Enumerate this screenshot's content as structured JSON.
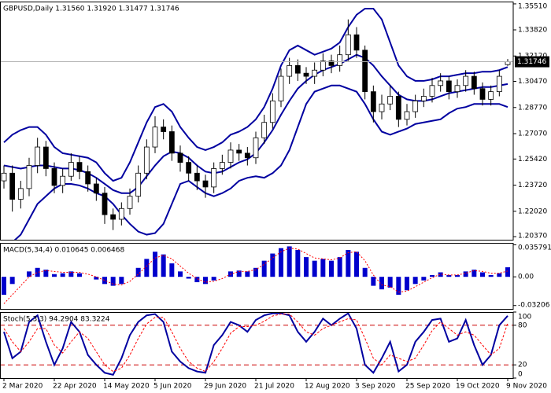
{
  "chart_data": [
    {
      "type": "candlestick",
      "title": "GBPUSD,Daily  1.31560 1.31920 1.31477 1.31746",
      "categories": [
        "2 Mar 2020",
        null,
        null,
        null,
        null,
        null,
        "22 Apr 2020",
        null,
        null,
        null,
        null,
        null,
        "14 May 2020",
        null,
        null,
        null,
        null,
        null,
        "5 Jun 2020",
        null,
        null,
        null,
        null,
        null,
        "29 Jun 2020",
        null,
        null,
        null,
        null,
        null,
        "21 Jul 2020",
        null,
        null,
        null,
        null,
        null,
        "12 Aug 2020",
        null,
        null,
        null,
        null,
        null,
        "3 Sep 2020",
        null,
        null,
        null,
        null,
        null,
        "25 Sep 2020",
        null,
        null,
        null,
        null,
        null,
        "19 Oct 2020",
        null,
        null,
        null,
        null,
        null,
        "9 Nov 2020"
      ],
      "open": [
        1.24,
        1.245,
        1.228,
        1.235,
        1.25,
        1.262,
        1.248,
        1.237,
        1.243,
        1.252,
        1.246,
        1.238,
        1.232,
        1.218,
        1.215,
        1.222,
        1.23,
        1.245,
        1.262,
        1.275,
        1.272,
        1.258,
        1.252,
        1.245,
        1.24,
        1.236,
        1.248,
        1.252,
        1.26,
        1.258,
        1.255,
        1.268,
        1.278,
        1.292,
        1.308,
        1.315,
        1.31,
        1.308,
        1.312,
        1.318,
        1.315,
        1.322,
        1.335,
        1.325,
        1.298,
        1.285,
        1.29,
        1.295,
        1.28,
        1.285,
        1.292,
        1.295,
        1.302,
        1.305,
        1.298,
        1.302,
        1.308,
        1.3,
        1.293,
        1.298,
        1.3156
      ],
      "high": [
        1.25,
        1.25,
        1.24,
        1.255,
        1.268,
        1.266,
        1.252,
        1.248,
        1.258,
        1.256,
        1.25,
        1.242,
        1.236,
        1.222,
        1.226,
        1.235,
        1.25,
        1.267,
        1.282,
        1.28,
        1.276,
        1.263,
        1.256,
        1.25,
        1.244,
        1.252,
        1.257,
        1.265,
        1.264,
        1.262,
        1.272,
        1.283,
        1.297,
        1.313,
        1.32,
        1.319,
        1.314,
        1.317,
        1.323,
        1.322,
        1.328,
        1.345,
        1.34,
        1.328,
        1.302,
        1.296,
        1.302,
        1.298,
        1.29,
        1.296,
        1.3,
        1.307,
        1.31,
        1.308,
        1.306,
        1.312,
        1.311,
        1.304,
        1.302,
        1.312,
        1.3192
      ],
      "low": [
        1.235,
        1.22,
        1.222,
        1.23,
        1.245,
        1.243,
        1.232,
        1.232,
        1.24,
        1.241,
        1.233,
        1.227,
        1.212,
        1.208,
        1.211,
        1.218,
        1.226,
        1.241,
        1.258,
        1.267,
        1.253,
        1.246,
        1.24,
        1.234,
        1.229,
        1.232,
        1.244,
        1.248,
        1.253,
        1.25,
        1.251,
        1.264,
        1.274,
        1.288,
        1.303,
        1.305,
        1.303,
        1.303,
        1.308,
        1.31,
        1.311,
        1.318,
        1.32,
        1.293,
        1.278,
        1.28,
        1.286,
        1.275,
        1.276,
        1.281,
        1.288,
        1.291,
        1.298,
        1.293,
        1.294,
        1.298,
        1.296,
        1.289,
        1.289,
        1.295,
        1.31477
      ],
      "close": [
        1.245,
        1.228,
        1.235,
        1.25,
        1.262,
        1.248,
        1.237,
        1.243,
        1.252,
        1.246,
        1.238,
        1.232,
        1.218,
        1.215,
        1.222,
        1.23,
        1.245,
        1.262,
        1.275,
        1.272,
        1.258,
        1.252,
        1.245,
        1.24,
        1.236,
        1.248,
        1.252,
        1.26,
        1.258,
        1.255,
        1.268,
        1.278,
        1.292,
        1.308,
        1.315,
        1.31,
        1.308,
        1.312,
        1.318,
        1.315,
        1.322,
        1.335,
        1.325,
        1.298,
        1.285,
        1.29,
        1.295,
        1.28,
        1.285,
        1.292,
        1.295,
        1.302,
        1.305,
        1.298,
        1.302,
        1.308,
        1.3,
        1.293,
        1.298,
        1.308,
        1.31746
      ],
      "color": "#000000",
      "bands": {
        "color": "#0000a0",
        "upper": [
          1.265,
          1.27,
          1.273,
          1.275,
          1.275,
          1.27,
          1.262,
          1.258,
          1.257,
          1.256,
          1.255,
          1.252,
          1.245,
          1.24,
          1.242,
          1.252,
          1.265,
          1.278,
          1.288,
          1.29,
          1.285,
          1.275,
          1.268,
          1.262,
          1.26,
          1.262,
          1.265,
          1.27,
          1.272,
          1.275,
          1.28,
          1.288,
          1.3,
          1.315,
          1.325,
          1.328,
          1.325,
          1.322,
          1.324,
          1.326,
          1.33,
          1.34,
          1.348,
          1.352,
          1.352,
          1.345,
          1.33,
          1.315,
          1.308,
          1.305,
          1.305,
          1.306,
          1.308,
          1.308,
          1.309,
          1.31,
          1.31,
          1.311,
          1.311,
          1.312,
          1.314
        ],
        "middle": [
          1.25,
          1.249,
          1.248,
          1.249,
          1.25,
          1.25,
          1.249,
          1.248,
          1.248,
          1.247,
          1.245,
          1.242,
          1.238,
          1.234,
          1.232,
          1.232,
          1.236,
          1.243,
          1.25,
          1.256,
          1.259,
          1.258,
          1.255,
          1.25,
          1.246,
          1.245,
          1.246,
          1.249,
          1.252,
          1.254,
          1.258,
          1.265,
          1.273,
          1.283,
          1.292,
          1.3,
          1.305,
          1.309,
          1.312,
          1.314,
          1.316,
          1.319,
          1.322,
          1.32,
          1.315,
          1.308,
          1.302,
          1.296,
          1.293,
          1.292,
          1.292,
          1.293,
          1.295,
          1.297,
          1.298,
          1.299,
          1.3,
          1.301,
          1.301,
          1.302,
          1.303
        ],
        "lower": [
          1.195,
          1.2,
          1.205,
          1.215,
          1.225,
          1.23,
          1.235,
          1.238,
          1.238,
          1.237,
          1.235,
          1.232,
          1.23,
          1.225,
          1.218,
          1.212,
          1.207,
          1.205,
          1.206,
          1.212,
          1.225,
          1.238,
          1.24,
          1.236,
          1.232,
          1.23,
          1.232,
          1.235,
          1.24,
          1.242,
          1.243,
          1.242,
          1.245,
          1.25,
          1.26,
          1.275,
          1.29,
          1.298,
          1.3,
          1.302,
          1.302,
          1.3,
          1.298,
          1.29,
          1.28,
          1.272,
          1.27,
          1.272,
          1.274,
          1.277,
          1.278,
          1.279,
          1.28,
          1.284,
          1.287,
          1.288,
          1.29,
          1.29,
          1.29,
          1.29,
          1.288
        ]
      },
      "last_price": 1.31746,
      "ylim": [
        1.2017,
        1.3566
      ],
      "yticks": [
        {
          "value": 1.3551,
          "label": "1.35510"
        },
        {
          "value": 1.3382,
          "label": "1.33820"
        },
        {
          "value": 1.3212,
          "label": "1.32120"
        },
        {
          "value": 1.3047,
          "label": "1.30470"
        },
        {
          "value": 1.2877,
          "label": "1.28770"
        },
        {
          "value": 1.2707,
          "label": "1.27070"
        },
        {
          "value": 1.2542,
          "label": "1.25420"
        },
        {
          "value": 1.2372,
          "label": "1.23720"
        },
        {
          "value": 1.2202,
          "label": "1.22020"
        },
        {
          "value": 1.2037,
          "label": "1.20370"
        }
      ]
    },
    {
      "type": "macd",
      "title": "MACD(5,34,4) 0.010645 0.006468",
      "histogram": {
        "color": "#0000cc",
        "values": [
          -0.02,
          -0.008,
          0.0,
          0.006,
          0.01,
          0.008,
          0.003,
          0.004,
          0.006,
          0.004,
          0.0,
          -0.003,
          -0.008,
          -0.01,
          -0.008,
          0.0,
          0.01,
          0.02,
          0.028,
          0.025,
          0.015,
          0.006,
          -0.002,
          -0.006,
          -0.008,
          -0.004,
          0.0,
          0.006,
          0.007,
          0.006,
          0.01,
          0.018,
          0.026,
          0.032,
          0.034,
          0.03,
          0.022,
          0.018,
          0.02,
          0.018,
          0.022,
          0.03,
          0.028,
          0.01,
          -0.01,
          -0.014,
          -0.012,
          -0.02,
          -0.015,
          -0.008,
          -0.004,
          0.002,
          0.005,
          0.002,
          0.002,
          0.006,
          0.008,
          0.005,
          0.002,
          0.004,
          0.010645
        ]
      },
      "signal": {
        "color": "#ff0000",
        "values": [
          -0.03,
          -0.02,
          -0.01,
          0.0,
          0.005,
          0.007,
          0.006,
          0.005,
          0.005,
          0.005,
          0.003,
          0.0,
          -0.004,
          -0.008,
          -0.009,
          -0.005,
          0.003,
          0.012,
          0.021,
          0.024,
          0.02,
          0.012,
          0.004,
          -0.002,
          -0.006,
          -0.005,
          -0.002,
          0.003,
          0.006,
          0.006,
          0.008,
          0.014,
          0.021,
          0.028,
          0.032,
          0.031,
          0.026,
          0.021,
          0.02,
          0.019,
          0.021,
          0.027,
          0.028,
          0.018,
          0.002,
          -0.009,
          -0.011,
          -0.017,
          -0.016,
          -0.011,
          -0.006,
          -0.001,
          0.003,
          0.002,
          0.002,
          0.004,
          0.007,
          0.006,
          0.004,
          0.004,
          0.006468
        ]
      },
      "ylim": [
        -0.0358,
        0.0379
      ],
      "yticks": [
        0.035791,
        {
          "value": 0,
          "label": "0.00"
        },
        -0.03206
      ]
    },
    {
      "type": "stochastic",
      "title": "Stoch(5,3,3) 94.2904 83.3224",
      "main": {
        "color": "#0000a0",
        "values": [
          70,
          30,
          40,
          85,
          95,
          55,
          20,
          45,
          85,
          70,
          35,
          20,
          8,
          5,
          30,
          65,
          85,
          95,
          97,
          85,
          40,
          25,
          15,
          10,
          8,
          50,
          65,
          85,
          80,
          70,
          88,
          95,
          98,
          98,
          95,
          70,
          55,
          70,
          90,
          80,
          90,
          98,
          75,
          20,
          8,
          30,
          55,
          10,
          20,
          55,
          70,
          88,
          90,
          55,
          60,
          88,
          50,
          20,
          35,
          80,
          94.2904
        ]
      },
      "signal": {
        "color": "#ff0000",
        "values": [
          75,
          55,
          40,
          55,
          75,
          75,
          50,
          38,
          55,
          70,
          60,
          40,
          20,
          10,
          15,
          35,
          60,
          82,
          92,
          92,
          70,
          45,
          25,
          15,
          10,
          25,
          45,
          68,
          78,
          78,
          80,
          86,
          94,
          97,
          97,
          85,
          70,
          65,
          75,
          80,
          85,
          90,
          88,
          60,
          30,
          20,
          35,
          30,
          25,
          30,
          50,
          72,
          85,
          75,
          65,
          70,
          65,
          50,
          35,
          45,
          83.3224
        ]
      },
      "levels": [
        80,
        20
      ],
      "level_color": "#cc0000",
      "ylim": [
        0,
        100
      ],
      "yticks": [
        100,
        80,
        20,
        0
      ]
    }
  ]
}
